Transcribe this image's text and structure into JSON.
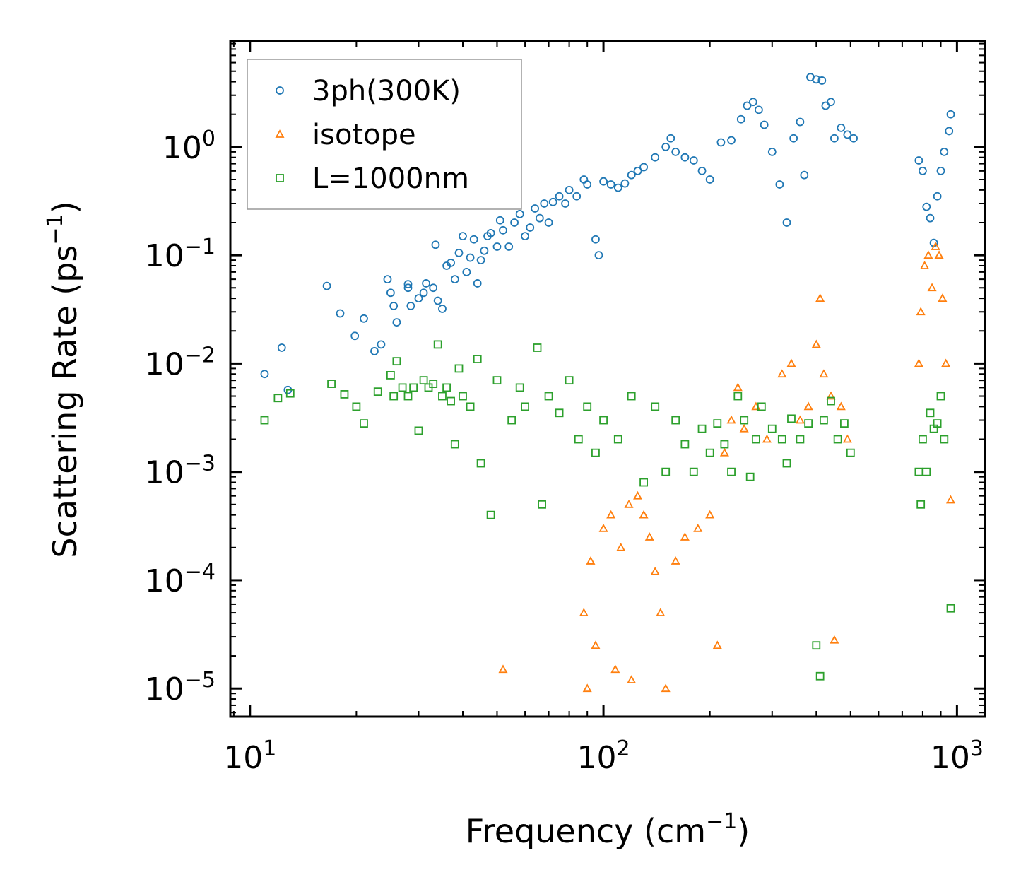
{
  "chart_data": {
    "type": "scatter",
    "title": "",
    "xlabel": "Frequency (cm",
    "xlabel_sup": "−1",
    "xlabel_suffix": ")",
    "ylabel": "Scattering Rate (ps",
    "ylabel_sup": "−1",
    "ylabel_suffix": ")",
    "xscale": "log",
    "yscale": "log",
    "xlim": [
      8.8,
      1200
    ],
    "ylim": [
      5.5e-06,
      9.5
    ],
    "xticks": [
      {
        "base": "10",
        "exp": "1",
        "value": 10
      },
      {
        "base": "10",
        "exp": "2",
        "value": 100
      },
      {
        "base": "10",
        "exp": "3",
        "value": 1000
      }
    ],
    "yticks": [
      {
        "base": "10",
        "exp": "−5",
        "value": 1e-05
      },
      {
        "base": "10",
        "exp": "−4",
        "value": 0.0001
      },
      {
        "base": "10",
        "exp": "−3",
        "value": 0.001
      },
      {
        "base": "10",
        "exp": "−2",
        "value": 0.01
      },
      {
        "base": "10",
        "exp": "−1",
        "value": 0.1
      },
      {
        "base": "10",
        "exp": "0",
        "value": 1
      }
    ],
    "legend_position": "top-left",
    "series": [
      {
        "name": "3ph(300K)",
        "marker": "circle",
        "color": "#1f77b4",
        "points": [
          [
            11,
            0.008
          ],
          [
            12.3,
            0.014
          ],
          [
            12.8,
            0.0057
          ],
          [
            16.5,
            0.052
          ],
          [
            18,
            0.029
          ],
          [
            19.8,
            0.018
          ],
          [
            21,
            0.026
          ],
          [
            22.5,
            0.013
          ],
          [
            23.5,
            0.015
          ],
          [
            24.5,
            0.06
          ],
          [
            25,
            0.045
          ],
          [
            25.5,
            0.034
          ],
          [
            26,
            0.024
          ],
          [
            28,
            0.054
          ],
          [
            28,
            0.05
          ],
          [
            28.5,
            0.034
          ],
          [
            30,
            0.04
          ],
          [
            31,
            0.045
          ],
          [
            31.5,
            0.055
          ],
          [
            33,
            0.05
          ],
          [
            33.5,
            0.125
          ],
          [
            34,
            0.038
          ],
          [
            35,
            0.032
          ],
          [
            36,
            0.08
          ],
          [
            37,
            0.085
          ],
          [
            38,
            0.06
          ],
          [
            39,
            0.105
          ],
          [
            40,
            0.15
          ],
          [
            41,
            0.07
          ],
          [
            42,
            0.095
          ],
          [
            43,
            0.14
          ],
          [
            44,
            0.055
          ],
          [
            45,
            0.09
          ],
          [
            46,
            0.11
          ],
          [
            47,
            0.15
          ],
          [
            48,
            0.16
          ],
          [
            50,
            0.12
          ],
          [
            51,
            0.21
          ],
          [
            52,
            0.17
          ],
          [
            54,
            0.12
          ],
          [
            56,
            0.2
          ],
          [
            58,
            0.24
          ],
          [
            60,
            0.15
          ],
          [
            62,
            0.18
          ],
          [
            64,
            0.27
          ],
          [
            66,
            0.22
          ],
          [
            68,
            0.3
          ],
          [
            70,
            0.2
          ],
          [
            72,
            0.31
          ],
          [
            75,
            0.35
          ],
          [
            78,
            0.3
          ],
          [
            80,
            0.4
          ],
          [
            84,
            0.35
          ],
          [
            88,
            0.5
          ],
          [
            90,
            0.45
          ],
          [
            95,
            0.14
          ],
          [
            97,
            0.1
          ],
          [
            100,
            0.48
          ],
          [
            105,
            0.45
          ],
          [
            110,
            0.42
          ],
          [
            115,
            0.46
          ],
          [
            120,
            0.55
          ],
          [
            125,
            0.6
          ],
          [
            130,
            0.65
          ],
          [
            140,
            0.8
          ],
          [
            150,
            1.0
          ],
          [
            155,
            1.2
          ],
          [
            160,
            0.9
          ],
          [
            170,
            0.8
          ],
          [
            180,
            0.75
          ],
          [
            190,
            0.6
          ],
          [
            200,
            0.5
          ],
          [
            215,
            1.1
          ],
          [
            230,
            1.15
          ],
          [
            245,
            1.8
          ],
          [
            255,
            2.4
          ],
          [
            265,
            2.6
          ],
          [
            275,
            2.2
          ],
          [
            285,
            1.6
          ],
          [
            300,
            0.9
          ],
          [
            315,
            0.45
          ],
          [
            330,
            0.2
          ],
          [
            345,
            1.2
          ],
          [
            360,
            1.7
          ],
          [
            370,
            0.55
          ],
          [
            385,
            4.4
          ],
          [
            400,
            4.2
          ],
          [
            415,
            4.1
          ],
          [
            425,
            2.4
          ],
          [
            440,
            2.6
          ],
          [
            450,
            1.2
          ],
          [
            470,
            1.5
          ],
          [
            490,
            1.3
          ],
          [
            510,
            1.2
          ],
          [
            780,
            0.75
          ],
          [
            800,
            0.6
          ],
          [
            820,
            0.28
          ],
          [
            840,
            0.22
          ],
          [
            860,
            0.13
          ],
          [
            880,
            0.35
          ],
          [
            900,
            0.6
          ],
          [
            920,
            0.9
          ],
          [
            950,
            1.4
          ],
          [
            960,
            2.0
          ]
        ]
      },
      {
        "name": "isotope",
        "marker": "triangle",
        "color": "#ff7f0e",
        "points": [
          [
            52,
            1.5e-05
          ],
          [
            88,
            5e-05
          ],
          [
            90,
            1e-05
          ],
          [
            92,
            0.00015
          ],
          [
            95,
            2.5e-05
          ],
          [
            100,
            0.0003
          ],
          [
            105,
            0.0004
          ],
          [
            108,
            1.5e-05
          ],
          [
            112,
            0.0002
          ],
          [
            118,
            0.0005
          ],
          [
            120,
            1.2e-05
          ],
          [
            125,
            0.0006
          ],
          [
            130,
            0.0004
          ],
          [
            135,
            0.00025
          ],
          [
            140,
            0.00012
          ],
          [
            145,
            5e-05
          ],
          [
            150,
            1e-05
          ],
          [
            160,
            0.00015
          ],
          [
            170,
            0.00025
          ],
          [
            185,
            0.0003
          ],
          [
            200,
            0.0004
          ],
          [
            210,
            2.5e-05
          ],
          [
            220,
            0.0015
          ],
          [
            230,
            0.003
          ],
          [
            240,
            0.006
          ],
          [
            250,
            0.0025
          ],
          [
            270,
            0.004
          ],
          [
            290,
            0.002
          ],
          [
            320,
            0.008
          ],
          [
            340,
            0.01
          ],
          [
            360,
            0.003
          ],
          [
            380,
            0.004
          ],
          [
            400,
            0.015
          ],
          [
            410,
            0.04
          ],
          [
            420,
            0.008
          ],
          [
            440,
            0.005
          ],
          [
            450,
            2.8e-05
          ],
          [
            470,
            0.004
          ],
          [
            490,
            0.002
          ],
          [
            780,
            0.01
          ],
          [
            790,
            0.03
          ],
          [
            810,
            0.08
          ],
          [
            830,
            0.1
          ],
          [
            850,
            0.05
          ],
          [
            870,
            0.12
          ],
          [
            890,
            0.1
          ],
          [
            910,
            0.04
          ],
          [
            930,
            0.01
          ],
          [
            960,
            0.00055
          ]
        ]
      },
      {
        "name": "L=1000nm",
        "marker": "square",
        "color": "#2ca02c",
        "points": [
          [
            11,
            0.003
          ],
          [
            12,
            0.0048
          ],
          [
            13,
            0.0053
          ],
          [
            17,
            0.0065
          ],
          [
            18.5,
            0.0052
          ],
          [
            20,
            0.004
          ],
          [
            21,
            0.0028
          ],
          [
            23,
            0.0055
          ],
          [
            25,
            0.0078
          ],
          [
            25.5,
            0.005
          ],
          [
            26,
            0.0105
          ],
          [
            27,
            0.006
          ],
          [
            28,
            0.005
          ],
          [
            29,
            0.006
          ],
          [
            30,
            0.0024
          ],
          [
            31,
            0.007
          ],
          [
            32,
            0.006
          ],
          [
            33,
            0.0065
          ],
          [
            34,
            0.015
          ],
          [
            35,
            0.005
          ],
          [
            36,
            0.006
          ],
          [
            37,
            0.0045
          ],
          [
            38,
            0.0018
          ],
          [
            39,
            0.009
          ],
          [
            40,
            0.005
          ],
          [
            42,
            0.004
          ],
          [
            44,
            0.011
          ],
          [
            45,
            0.0012
          ],
          [
            48,
            0.0004
          ],
          [
            50,
            0.007
          ],
          [
            55,
            0.003
          ],
          [
            58,
            0.006
          ],
          [
            60,
            0.004
          ],
          [
            65,
            0.014
          ],
          [
            67,
            0.0005
          ],
          [
            70,
            0.005
          ],
          [
            75,
            0.0035
          ],
          [
            80,
            0.007
          ],
          [
            85,
            0.002
          ],
          [
            90,
            0.004
          ],
          [
            95,
            0.0015
          ],
          [
            100,
            0.003
          ],
          [
            110,
            0.002
          ],
          [
            120,
            0.005
          ],
          [
            130,
            0.0008
          ],
          [
            140,
            0.004
          ],
          [
            150,
            0.001
          ],
          [
            160,
            0.003
          ],
          [
            170,
            0.0018
          ],
          [
            180,
            0.001
          ],
          [
            190,
            0.0025
          ],
          [
            200,
            0.0015
          ],
          [
            210,
            0.0028
          ],
          [
            220,
            0.0018
          ],
          [
            230,
            0.001
          ],
          [
            240,
            0.005
          ],
          [
            250,
            0.003
          ],
          [
            260,
            0.0009
          ],
          [
            270,
            0.002
          ],
          [
            280,
            0.004
          ],
          [
            300,
            0.0025
          ],
          [
            320,
            0.002
          ],
          [
            330,
            0.0012
          ],
          [
            340,
            0.0031
          ],
          [
            360,
            0.002
          ],
          [
            380,
            0.0028
          ],
          [
            400,
            2.5e-05
          ],
          [
            410,
            1.3e-05
          ],
          [
            420,
            0.003
          ],
          [
            440,
            0.0045
          ],
          [
            460,
            0.002
          ],
          [
            480,
            0.0028
          ],
          [
            500,
            0.0015
          ],
          [
            780,
            0.001
          ],
          [
            790,
            0.0005
          ],
          [
            800,
            0.002
          ],
          [
            820,
            0.001
          ],
          [
            840,
            0.0035
          ],
          [
            860,
            0.0025
          ],
          [
            880,
            0.0028
          ],
          [
            900,
            0.005
          ],
          [
            920,
            0.002
          ],
          [
            960,
            5.5e-05
          ]
        ]
      }
    ]
  }
}
